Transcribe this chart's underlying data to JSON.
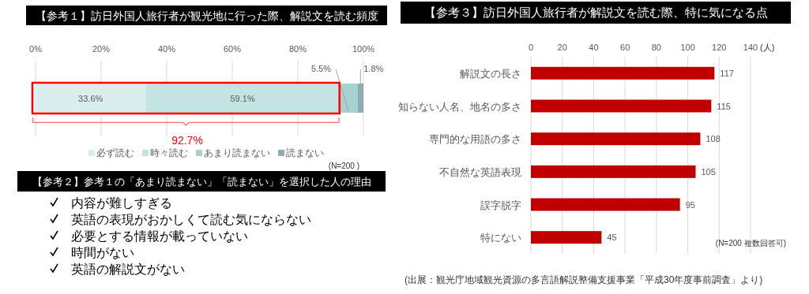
{
  "chart_data": [
    {
      "type": "bar",
      "orientation": "horizontal",
      "stacked": true,
      "title": "【参考１】訪日外国人旅行者が観光地に行った際、解説文を読む頻度",
      "categories": [
        null
      ],
      "series": [
        {
          "name": "必ず読む",
          "color": "#daeeee",
          "values": [
            33.6
          ],
          "value_labels": [
            "33.6%"
          ]
        },
        {
          "name": "時々読む",
          "color": "#c4e3e3",
          "values": [
            59.1
          ],
          "value_labels": [
            "59.1%"
          ]
        },
        {
          "name": "あまり読まない",
          "color": "#a8d1d2",
          "values": [
            5.5
          ],
          "value_labels": [
            "5.5%"
          ]
        },
        {
          "name": "読まない",
          "color": "#8daeb0",
          "values": [
            1.8
          ],
          "value_labels": [
            "1.8%"
          ]
        }
      ],
      "xlim": [
        0,
        100
      ],
      "xticks": [
        {
          "value": 0,
          "label": "0%"
        },
        {
          "value": 20,
          "label": "20%"
        },
        {
          "value": 40,
          "label": "40%"
        },
        {
          "value": 60,
          "label": "60%"
        },
        {
          "value": 80,
          "label": "80%"
        },
        {
          "value": 100,
          "label": "100%"
        }
      ],
      "grid": "x",
      "legend": "bottom",
      "annotations": [
        "92.7%",
        "(N=200 )"
      ]
    },
    {
      "type": "other",
      "title": "【参考２】参考１の「あまり読まない」「読まない」を選択した人の理由",
      "annotations": [
        "内容が難しすぎる",
        "英語の表現がおかしくて読む気にならない",
        "必要とする情報が載っていない",
        "時間がない",
        "英語の解説文がない"
      ]
    },
    {
      "type": "bar",
      "orientation": "horizontal",
      "title": "【参考３】訪日外国人旅行者が解説文を読む際、特に気になる点",
      "categories": [
        "解説文の長さ",
        "知らない人名、地名の多さ",
        "専門的な用語の多さ",
        "不自然な英語表現",
        "誤字脱字",
        "特にない"
      ],
      "values": [
        117,
        115,
        108,
        105,
        95,
        45
      ],
      "color": "#c00000",
      "data_labels": true,
      "xlim": [
        0,
        140
      ],
      "xticks": [
        0,
        20,
        40,
        60,
        80,
        100,
        120,
        140
      ],
      "xlabel": "(人)",
      "grid": "x",
      "annotations": [
        "(N=200 複数回答可)",
        "(出展：観光庁地域観光資源の多言語解説整備支援事業「平成30年度事前調査」より)"
      ]
    }
  ]
}
